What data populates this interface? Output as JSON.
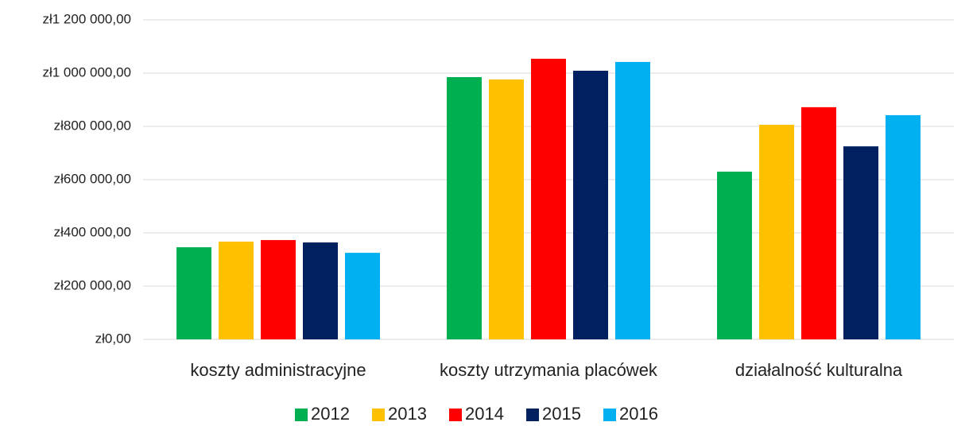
{
  "chart_data": {
    "type": "bar",
    "categories": [
      "koszty administracyjne",
      "koszty utrzymania placówek",
      "działalność kulturalna"
    ],
    "series": [
      {
        "name": "2012",
        "color": "#00b050",
        "values": [
          346000,
          985000,
          630000
        ]
      },
      {
        "name": "2013",
        "color": "#ffc000",
        "values": [
          367000,
          976000,
          806000
        ]
      },
      {
        "name": "2014",
        "color": "#ff0000",
        "values": [
          373000,
          1054000,
          872000
        ]
      },
      {
        "name": "2015",
        "color": "#002060",
        "values": [
          364000,
          1009000,
          725000
        ]
      },
      {
        "name": "2016",
        "color": "#00b0f0",
        "values": [
          325000,
          1042000,
          842000
        ]
      }
    ],
    "ylim": [
      0,
      1200000
    ],
    "yticks": [
      {
        "value": 0,
        "label": "zł0,00"
      },
      {
        "value": 200000,
        "label": "zł200 000,00"
      },
      {
        "value": 400000,
        "label": "zł400 000,00"
      },
      {
        "value": 600000,
        "label": "zł600 000,00"
      },
      {
        "value": 800000,
        "label": "zł800 000,00"
      },
      {
        "value": 1000000,
        "label": "zł1 000 000,00"
      },
      {
        "value": 1200000,
        "label": "zł1 200 000,00"
      }
    ],
    "grid": true,
    "legend": "bottom"
  }
}
